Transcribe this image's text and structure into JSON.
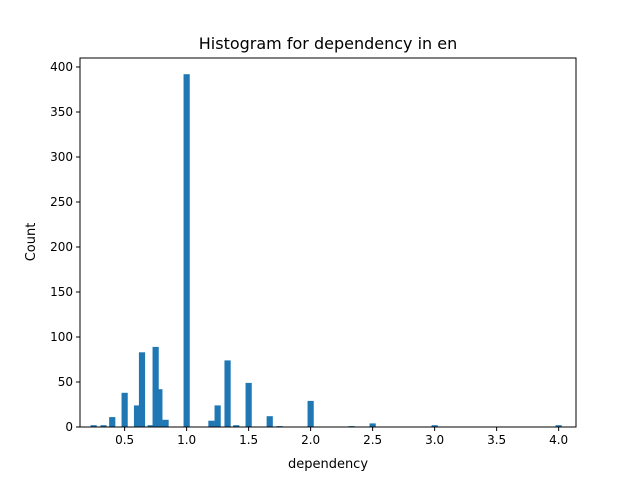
{
  "chart_data": {
    "type": "bar",
    "title": "Histogram for dependency in en",
    "xlabel": "dependency",
    "ylabel": "Count",
    "xlim": [
      0.14,
      4.14
    ],
    "ylim": [
      0,
      410
    ],
    "xticks": [
      0.5,
      1.0,
      1.5,
      2.0,
      2.5,
      3.0,
      3.5,
      4.0
    ],
    "xtick_labels": [
      "0.5",
      "1.0",
      "1.5",
      "2.0",
      "2.5",
      "3.0",
      "3.5",
      "4.0"
    ],
    "yticks": [
      0,
      50,
      100,
      150,
      200,
      250,
      300,
      350,
      400
    ],
    "ytick_labels": [
      "0",
      "50",
      "100",
      "150",
      "200",
      "250",
      "300",
      "350",
      "400"
    ],
    "bin_width": 0.05,
    "color": "#1f77b4",
    "grid": false,
    "bars": [
      {
        "x": 0.25,
        "count": 2
      },
      {
        "x": 0.33,
        "count": 2
      },
      {
        "x": 0.4,
        "count": 11
      },
      {
        "x": 0.5,
        "count": 38
      },
      {
        "x": 0.6,
        "count": 24
      },
      {
        "x": 0.64,
        "count": 83
      },
      {
        "x": 0.71,
        "count": 2
      },
      {
        "x": 0.75,
        "count": 89
      },
      {
        "x": 0.78,
        "count": 42
      },
      {
        "x": 0.83,
        "count": 8
      },
      {
        "x": 1.0,
        "count": 392
      },
      {
        "x": 1.2,
        "count": 7
      },
      {
        "x": 1.25,
        "count": 24
      },
      {
        "x": 1.33,
        "count": 74
      },
      {
        "x": 1.4,
        "count": 2
      },
      {
        "x": 1.5,
        "count": 49
      },
      {
        "x": 1.67,
        "count": 12
      },
      {
        "x": 1.75,
        "count": 1
      },
      {
        "x": 2.0,
        "count": 29
      },
      {
        "x": 2.33,
        "count": 1
      },
      {
        "x": 2.5,
        "count": 4
      },
      {
        "x": 3.0,
        "count": 2
      },
      {
        "x": 4.0,
        "count": 2
      }
    ]
  }
}
